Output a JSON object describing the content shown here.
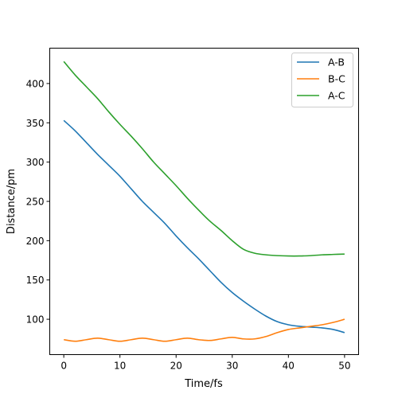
{
  "chart_data": {
    "type": "line",
    "xlabel": "Time/fs",
    "ylabel": "Distance/pm",
    "xlim": [
      -2.5,
      52.5
    ],
    "ylim": [
      55,
      445
    ],
    "xticks": [
      0,
      10,
      20,
      30,
      40,
      50
    ],
    "yticks": [
      100,
      150,
      200,
      250,
      300,
      350,
      400
    ],
    "grid": false,
    "legend_position": "top-right",
    "series": [
      {
        "name": "A-B",
        "color": "#1f77b4",
        "x": [
          0,
          2,
          4,
          6,
          8,
          10,
          12,
          14,
          16,
          18,
          20,
          22,
          24,
          26,
          28,
          30,
          32,
          34,
          36,
          38,
          40,
          42,
          44,
          46,
          48,
          50
        ],
        "y": [
          353,
          340,
          325,
          310,
          296,
          282,
          266,
          250,
          236,
          222,
          206,
          191,
          177,
          162,
          147,
          134,
          123,
          113,
          104,
          97,
          93,
          91,
          90,
          89,
          87,
          83
        ]
      },
      {
        "name": "B-C",
        "color": "#ff7f0e",
        "x": [
          0,
          2,
          4,
          6,
          8,
          10,
          12,
          14,
          16,
          18,
          20,
          22,
          24,
          26,
          28,
          30,
          32,
          34,
          36,
          38,
          40,
          42,
          44,
          46,
          48,
          50
        ],
        "y": [
          74,
          72,
          74,
          76,
          74,
          72,
          74,
          76,
          74,
          72,
          74,
          76,
          74,
          73,
          75,
          77,
          75,
          75,
          78,
          83,
          87,
          89,
          91,
          93,
          96,
          100
        ]
      },
      {
        "name": "A-C",
        "color": "#2ca02c",
        "x": [
          0,
          2,
          4,
          6,
          8,
          10,
          12,
          14,
          16,
          18,
          20,
          22,
          24,
          26,
          28,
          30,
          32,
          34,
          36,
          38,
          40,
          42,
          44,
          46,
          48,
          50
        ],
        "y": [
          428,
          411,
          396,
          381,
          364,
          348,
          333,
          317,
          300,
          285,
          270,
          254,
          239,
          225,
          213,
          200,
          189,
          184,
          182,
          181,
          180.5,
          180.5,
          181,
          182,
          182.5,
          183
        ]
      }
    ]
  }
}
